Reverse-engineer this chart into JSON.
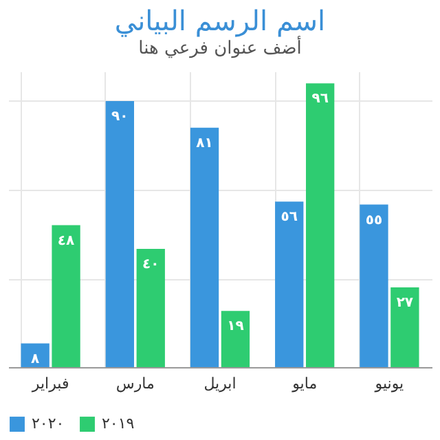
{
  "chart_data": {
    "type": "bar",
    "title": "اسم الرسم البياني",
    "subtitle": "أضف عنوان فرعي هنا",
    "categories": [
      "فبراير",
      "مارس",
      "ابريل",
      "مايو",
      "يونيو"
    ],
    "series": [
      {
        "name": "٢٠٢٠",
        "color": "#3a96dd",
        "values": [
          8,
          90,
          81,
          56,
          55
        ],
        "value_labels": [
          "٨",
          "٩٠",
          "٨١",
          "٥٦",
          "٥٥"
        ]
      },
      {
        "name": "٢٠١٩",
        "color": "#2ecc71",
        "values": [
          48,
          40,
          19,
          96,
          27
        ],
        "value_labels": [
          "٤٨",
          "٤٠",
          "١٩",
          "٩٦",
          "٢٧"
        ]
      }
    ],
    "ylim": [
      0,
      100
    ],
    "yticks": [
      {
        "value": 0,
        "label": null
      },
      {
        "value": 30,
        "label": null
      },
      {
        "value": 60,
        "label": null
      },
      {
        "value": 90,
        "label": null
      }
    ],
    "tick_labels": "x",
    "grid": true,
    "legend": "bottom"
  }
}
